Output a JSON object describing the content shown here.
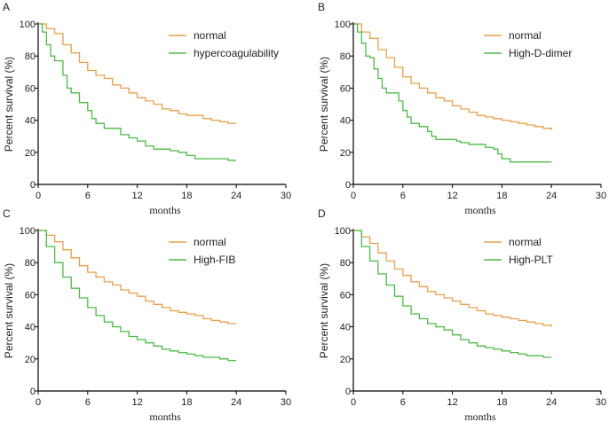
{
  "chart_data": [
    {
      "panel": "A",
      "type": "line",
      "xlabel": "months",
      "ylabel": "Percent survival (%)",
      "xlim": [
        0,
        30
      ],
      "ylim": [
        0,
        100
      ],
      "xticks": [
        0,
        6,
        12,
        18,
        24,
        30
      ],
      "yticks": [
        0,
        20,
        40,
        60,
        80,
        100
      ],
      "legend": "top-right",
      "series": [
        {
          "name": "normal",
          "color": "#E8A04A",
          "x": [
            0,
            1,
            2,
            3,
            4,
            5,
            6,
            7,
            8,
            9,
            10,
            11,
            12,
            13,
            14,
            15,
            16,
            17,
            18,
            19,
            20,
            21,
            22,
            23,
            24
          ],
          "y": [
            100,
            97,
            94,
            87,
            82,
            76,
            71,
            68,
            66,
            62,
            60,
            57,
            54,
            52,
            50,
            47,
            46,
            44,
            43,
            43,
            41,
            40,
            39,
            38,
            38
          ]
        },
        {
          "name": "hypercoagulability",
          "color": "#4CBB47",
          "x": [
            0,
            0.5,
            1,
            1.5,
            2,
            3,
            3.5,
            4,
            5,
            6,
            6.5,
            7,
            8,
            9,
            10,
            11,
            12,
            13,
            14,
            15,
            16,
            17,
            18,
            19,
            20,
            21,
            22,
            23,
            24
          ],
          "y": [
            100,
            95,
            87,
            80,
            77,
            68,
            60,
            57,
            51,
            46,
            41,
            38,
            35,
            35,
            31,
            29,
            27,
            24,
            22,
            22,
            21,
            20,
            18,
            16,
            16,
            16,
            16,
            15,
            15
          ]
        }
      ]
    },
    {
      "panel": "B",
      "type": "line",
      "xlabel": "months",
      "ylabel": "Percent survival (%)",
      "xlim": [
        0,
        30
      ],
      "ylim": [
        0,
        100
      ],
      "xticks": [
        0,
        6,
        12,
        18,
        24,
        30
      ],
      "yticks": [
        0,
        20,
        40,
        60,
        80,
        100
      ],
      "legend": "top-right",
      "series": [
        {
          "name": "normal",
          "color": "#E8A04A",
          "x": [
            0,
            1,
            2,
            3,
            4,
            5,
            6,
            7,
            8,
            9,
            10,
            11,
            12,
            13,
            14,
            15,
            16,
            17,
            18,
            19,
            20,
            21,
            22,
            23,
            24
          ],
          "y": [
            100,
            95,
            91,
            84,
            79,
            73,
            67,
            63,
            60,
            57,
            54,
            52,
            49,
            47,
            45,
            43,
            42,
            41,
            40,
            39,
            38,
            37,
            36,
            35,
            34
          ]
        },
        {
          "name": "High-D-dimer",
          "color": "#4CBB47",
          "x": [
            0,
            0.5,
            1,
            1.5,
            2,
            2.5,
            3,
            3.5,
            4,
            5,
            5.5,
            6,
            6.5,
            7,
            8,
            9,
            9.5,
            10,
            12,
            12.5,
            13,
            14,
            15,
            16,
            17,
            17.5,
            18,
            19,
            24
          ],
          "y": [
            100,
            95,
            88,
            80,
            79,
            72,
            66,
            60,
            57,
            57,
            52,
            46,
            42,
            38,
            36,
            33,
            30,
            28,
            28,
            27,
            26,
            25,
            25,
            23,
            22,
            19,
            16,
            14,
            14
          ]
        }
      ]
    },
    {
      "panel": "C",
      "type": "line",
      "xlabel": "months",
      "ylabel": "Percent survival (%)",
      "xlim": [
        0,
        30
      ],
      "ylim": [
        0,
        100
      ],
      "xticks": [
        0,
        6,
        12,
        18,
        24,
        30
      ],
      "yticks": [
        0,
        20,
        40,
        60,
        80,
        100
      ],
      "legend": "top-right",
      "series": [
        {
          "name": "normal",
          "color": "#E8A04A",
          "x": [
            0,
            1,
            2,
            3,
            4,
            5,
            6,
            7,
            8,
            9,
            10,
            11,
            12,
            13,
            14,
            15,
            16,
            17,
            18,
            19,
            20,
            21,
            22,
            23,
            24
          ],
          "y": [
            100,
            97,
            93,
            88,
            83,
            78,
            74,
            71,
            68,
            66,
            63,
            61,
            59,
            56,
            54,
            52,
            50,
            49,
            48,
            47,
            45,
            44,
            43,
            42,
            42
          ]
        },
        {
          "name": "High-FIB",
          "color": "#4CBB47",
          "x": [
            0,
            1,
            2,
            3,
            4,
            5,
            6,
            7,
            8,
            9,
            10,
            11,
            12,
            13,
            14,
            15,
            16,
            17,
            18,
            19,
            20,
            21,
            22,
            23,
            24
          ],
          "y": [
            100,
            90,
            80,
            71,
            64,
            58,
            52,
            47,
            43,
            40,
            37,
            34,
            32,
            30,
            28,
            26,
            25,
            24,
            23,
            22,
            21,
            21,
            20,
            19,
            19
          ]
        }
      ]
    },
    {
      "panel": "D",
      "type": "line",
      "xlabel": "months",
      "ylabel": "Percent survival (%)",
      "xlim": [
        0,
        30
      ],
      "ylim": [
        0,
        100
      ],
      "xticks": [
        0,
        6,
        12,
        18,
        24,
        30
      ],
      "yticks": [
        0,
        20,
        40,
        60,
        80,
        100
      ],
      "legend": "top-right",
      "series": [
        {
          "name": "normal",
          "color": "#E8A04A",
          "x": [
            0,
            1,
            2,
            3,
            4,
            5,
            6,
            7,
            8,
            9,
            10,
            11,
            12,
            13,
            14,
            15,
            16,
            17,
            18,
            19,
            20,
            21,
            22,
            23,
            24
          ],
          "y": [
            100,
            96,
            92,
            86,
            81,
            76,
            72,
            68,
            65,
            62,
            60,
            58,
            56,
            54,
            52,
            50,
            48,
            47,
            46,
            45,
            44,
            43,
            42,
            41,
            40
          ]
        },
        {
          "name": "High-PLT",
          "color": "#4CBB47",
          "x": [
            0,
            1,
            2,
            3,
            4,
            5,
            6,
            7,
            8,
            9,
            10,
            11,
            12,
            13,
            14,
            15,
            16,
            17,
            18,
            19,
            20,
            21,
            22,
            23,
            24
          ],
          "y": [
            100,
            90,
            81,
            73,
            66,
            59,
            53,
            48,
            45,
            42,
            40,
            38,
            35,
            32,
            30,
            28,
            27,
            26,
            25,
            24,
            23,
            22,
            22,
            21,
            21
          ]
        }
      ]
    }
  ]
}
